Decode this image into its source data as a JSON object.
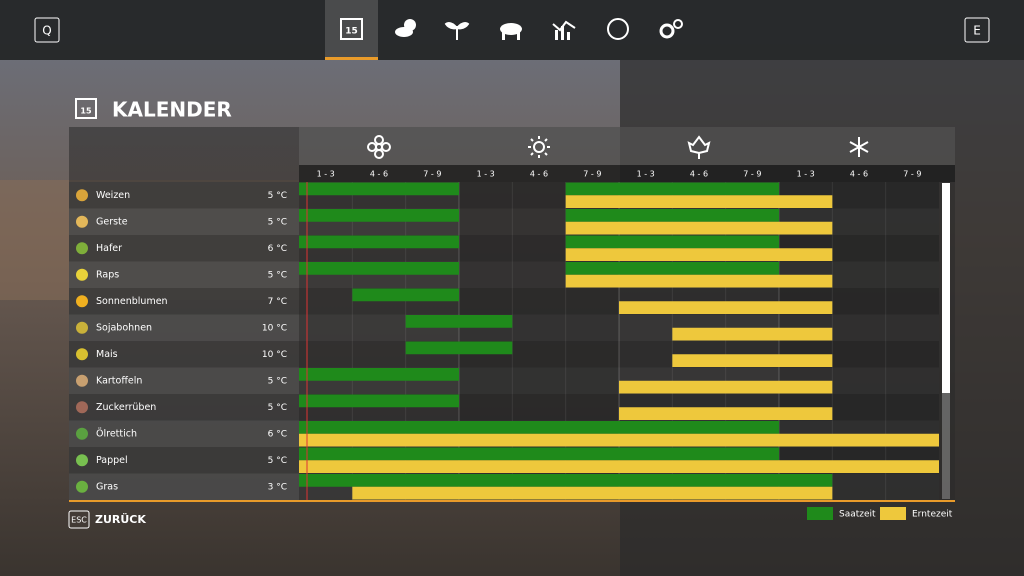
{
  "nav": {
    "left_key": "Q",
    "right_key": "E",
    "calendar_day": "15"
  },
  "title": "KALENDER",
  "periods": [
    "1 - 3",
    "4 - 6",
    "7 - 9",
    "1 - 3",
    "4 - 6",
    "7 - 9",
    "1 - 3",
    "4 - 6",
    "7 - 9",
    "1 - 3",
    "4 - 6",
    "7 - 9"
  ],
  "crops": [
    {
      "name": "Weizen",
      "temperature": "5 °C",
      "sowing": [
        [
          0,
          2
        ],
        [
          5,
          8
        ]
      ],
      "harvest": [
        [
          5,
          9
        ]
      ]
    },
    {
      "name": "Gerste",
      "temperature": "5 °C",
      "sowing": [
        [
          0,
          2
        ],
        [
          5,
          8
        ]
      ],
      "harvest": [
        [
          5,
          9
        ]
      ]
    },
    {
      "name": "Hafer",
      "temperature": "6 °C",
      "sowing": [
        [
          0,
          2
        ],
        [
          5,
          8
        ]
      ],
      "harvest": [
        [
          5,
          9
        ]
      ]
    },
    {
      "name": "Raps",
      "temperature": "5 °C",
      "sowing": [
        [
          0,
          2
        ],
        [
          5,
          8
        ]
      ],
      "harvest": [
        [
          5,
          9
        ]
      ]
    },
    {
      "name": "Sonnenblumen",
      "temperature": "7 °C",
      "sowing": [
        [
          1,
          2
        ]
      ],
      "harvest": [
        [
          6,
          9
        ]
      ]
    },
    {
      "name": "Sojabohnen",
      "temperature": "10 °C",
      "sowing": [
        [
          2,
          3
        ]
      ],
      "harvest": [
        [
          7,
          9
        ]
      ]
    },
    {
      "name": "Mais",
      "temperature": "10 °C",
      "sowing": [
        [
          2,
          3
        ]
      ],
      "harvest": [
        [
          7,
          9
        ]
      ]
    },
    {
      "name": "Kartoffeln",
      "temperature": "5 °C",
      "sowing": [
        [
          0,
          2
        ]
      ],
      "harvest": [
        [
          6,
          9
        ]
      ]
    },
    {
      "name": "Zuckerrüben",
      "temperature": "5 °C",
      "sowing": [
        [
          0,
          2
        ]
      ],
      "harvest": [
        [
          6,
          9
        ]
      ]
    },
    {
      "name": "Ölrettich",
      "temperature": "6 °C",
      "sowing": [
        [
          0,
          8
        ]
      ],
      "harvest": [
        [
          0,
          11
        ]
      ]
    },
    {
      "name": "Pappel",
      "temperature": "5 °C",
      "sowing": [
        [
          0,
          8
        ]
      ],
      "harvest": [
        [
          0,
          11
        ]
      ]
    },
    {
      "name": "Gras",
      "temperature": "3 °C",
      "sowing": [
        [
          0,
          9
        ]
      ],
      "harvest": [
        [
          1,
          9
        ]
      ]
    }
  ],
  "legend": {
    "sowing": "Saatzeit",
    "harvest": "Erntezeit",
    "sowing_color": "#1f8a1b",
    "harvest_color": "#eec83c"
  },
  "footer": {
    "key": "ESC",
    "label": "ZURÜCK"
  }
}
